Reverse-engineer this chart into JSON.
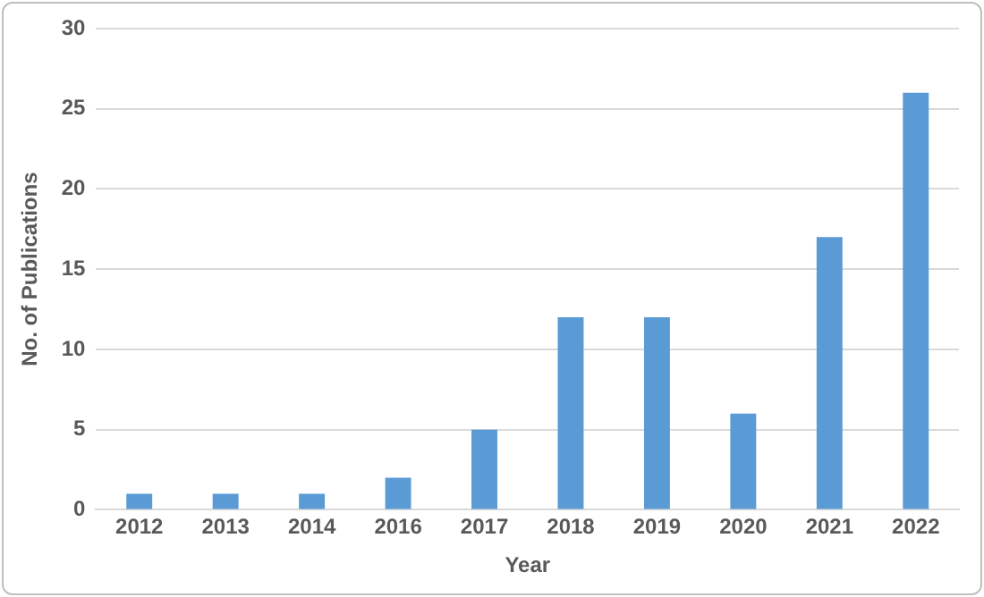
{
  "chart_data": {
    "type": "bar",
    "xlabel": "Year",
    "ylabel": "No. of Publications",
    "categories": [
      "2012",
      "2013",
      "2014",
      "2016",
      "2017",
      "2018",
      "2019",
      "2020",
      "2021",
      "2022"
    ],
    "values": [
      1,
      1,
      1,
      2,
      5,
      12,
      12,
      6,
      17,
      26
    ],
    "color": "#5b9bd5",
    "ylim": [
      0,
      30
    ],
    "yticks": [
      0,
      5,
      10,
      15,
      20,
      25,
      30
    ],
    "grid": "y"
  }
}
